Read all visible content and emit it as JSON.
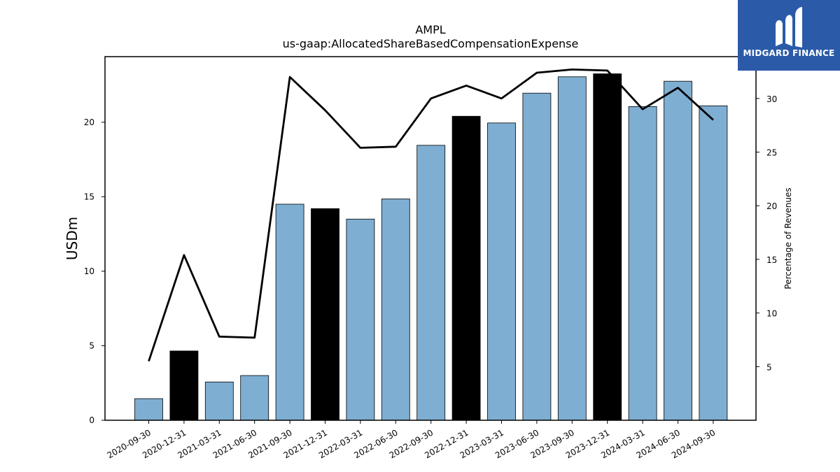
{
  "chart_data": {
    "type": "bar",
    "title": "AMPL",
    "subtitle": "us-gaap:AllocatedShareBasedCompensationExpense",
    "ylabel": "USDm",
    "y2label": "Percentage of Revenues",
    "ylim": [
      0,
      24.4
    ],
    "y2lim": [
      0,
      33.9
    ],
    "yticks": [
      0,
      5,
      10,
      15,
      20
    ],
    "y2ticks": [
      5,
      10,
      15,
      20,
      25,
      30
    ],
    "categories": [
      "2020-09-30",
      "2020-12-31",
      "2021-03-31",
      "2021-06-30",
      "2021-09-30",
      "2021-12-31",
      "2022-03-31",
      "2022-06-30",
      "2022-09-30",
      "2022-12-31",
      "2023-03-31",
      "2023-06-30",
      "2023-09-30",
      "2023-12-31",
      "2024-03-31",
      "2024-06-30",
      "2024-09-30"
    ],
    "series": [
      {
        "type": "bar",
        "axis": "left",
        "values": [
          1.45,
          4.65,
          2.57,
          3.0,
          14.5,
          14.2,
          13.5,
          14.85,
          18.45,
          20.4,
          19.95,
          21.95,
          23.05,
          23.25,
          21.05,
          22.75,
          21.1
        ],
        "colors": [
          "#7eaed2",
          "#000000",
          "#7eaed2",
          "#7eaed2",
          "#7eaed2",
          "#000000",
          "#7eaed2",
          "#7eaed2",
          "#7eaed2",
          "#000000",
          "#7eaed2",
          "#7eaed2",
          "#7eaed2",
          "#000000",
          "#7eaed2",
          "#7eaed2",
          "#7eaed2"
        ]
      },
      {
        "type": "line",
        "axis": "right",
        "color": "#000000",
        "values": [
          5.5,
          15.4,
          7.8,
          7.7,
          32.0,
          28.9,
          25.4,
          25.5,
          30.0,
          31.2,
          30.0,
          32.4,
          32.7,
          32.6,
          29.0,
          31.0,
          28.0
        ]
      }
    ]
  },
  "logo": {
    "text": "MIDGARD FINANCE",
    "icon": "midgard-m-icon",
    "background": "#2b5aa8"
  }
}
